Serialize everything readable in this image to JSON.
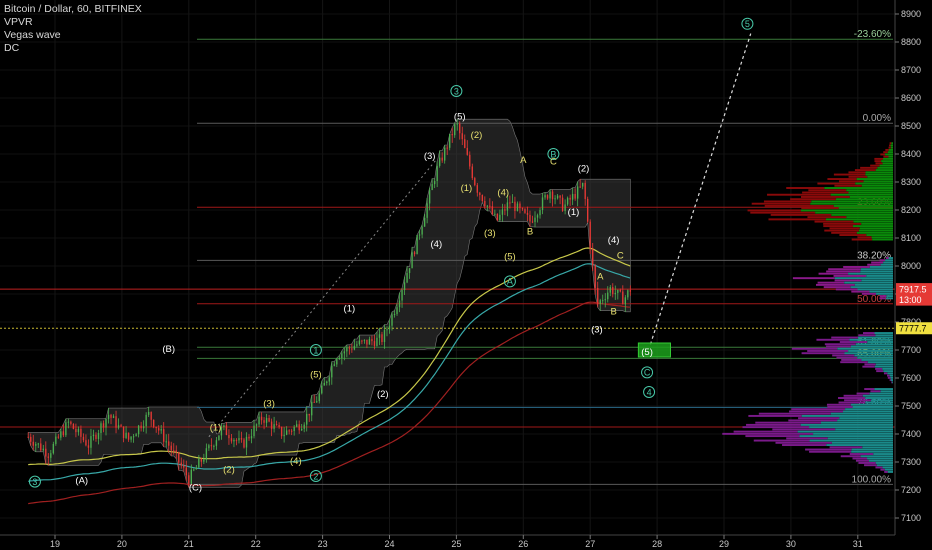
{
  "legend": {
    "title": "Bitcoin / Dollar, 60, BITFINEX",
    "indicators": [
      "VPVR",
      "Vegas wave",
      "DC"
    ]
  },
  "colors": {
    "background": "#000000",
    "candle_up": "#4caf50",
    "candle_down": "#e53935",
    "fib_line": "#3a7a3a",
    "fib_red": "#a01818",
    "ema_yellow": "#c8c84a",
    "ema_cyan": "#38a8a8",
    "ema_red": "#a02020",
    "dc_fill": "#3a3a3a",
    "wave_label": "#ffffff",
    "wave_label_yellow": "#e8e070",
    "circle_label": "#48c8a8"
  },
  "axis": {
    "y_ticks": [
      7100,
      7200,
      7300,
      7400,
      7500,
      7600,
      7700,
      7800,
      7900,
      8000,
      8100,
      8200,
      8300,
      8400,
      8500,
      8600,
      8700,
      8800,
      8900
    ],
    "x_ticks": [
      "19",
      "20",
      "21",
      "22",
      "23",
      "24",
      "25",
      "26",
      "27",
      "28",
      "29",
      "30",
      "31"
    ],
    "x_tick_days": [
      19,
      20,
      21,
      22,
      23,
      24,
      25,
      26,
      27,
      28,
      29,
      30,
      31
    ],
    "ylim": [
      7050,
      8950
    ],
    "xlim": [
      18.6,
      31.4
    ]
  },
  "price_badges": [
    {
      "text": "7917.5",
      "price": 7917.5,
      "bg": "#e53935",
      "fg": "#ffffff"
    },
    {
      "text": "13:00",
      "price": 7880,
      "bg": "#e53935",
      "fg": "#ffffff"
    },
    {
      "text": "7777.7",
      "price": 7777.7,
      "bg": "#f0e040",
      "fg": "#000000"
    }
  ],
  "chart_data": {
    "type": "candlestick",
    "symbol": "Bitcoin / Dollar",
    "interval": "60",
    "exchange": "BITFINEX",
    "price_path": [
      {
        "day": 18.6,
        "price": 7390
      },
      {
        "day": 18.9,
        "price": 7330
      },
      {
        "day": 19.2,
        "price": 7440
      },
      {
        "day": 19.5,
        "price": 7360
      },
      {
        "day": 19.8,
        "price": 7470
      },
      {
        "day": 20.1,
        "price": 7380
      },
      {
        "day": 20.4,
        "price": 7470
      },
      {
        "day": 20.7,
        "price": 7360
      },
      {
        "day": 21.0,
        "price": 7240
      },
      {
        "day": 21.2,
        "price": 7310
      },
      {
        "day": 21.5,
        "price": 7420
      },
      {
        "day": 21.8,
        "price": 7360
      },
      {
        "day": 22.1,
        "price": 7460
      },
      {
        "day": 22.4,
        "price": 7400
      },
      {
        "day": 22.7,
        "price": 7440
      },
      {
        "day": 23.0,
        "price": 7560
      },
      {
        "day": 23.2,
        "price": 7680
      },
      {
        "day": 23.5,
        "price": 7720
      },
      {
        "day": 23.9,
        "price": 7740
      },
      {
        "day": 24.1,
        "price": 7860
      },
      {
        "day": 24.4,
        "price": 8080
      },
      {
        "day": 24.7,
        "price": 8340
      },
      {
        "day": 25.0,
        "price": 8510
      },
      {
        "day": 25.3,
        "price": 8280
      },
      {
        "day": 25.6,
        "price": 8160
      },
      {
        "day": 25.8,
        "price": 8230
      },
      {
        "day": 26.1,
        "price": 8160
      },
      {
        "day": 26.4,
        "price": 8270
      },
      {
        "day": 26.6,
        "price": 8210
      },
      {
        "day": 26.9,
        "price": 8290
      },
      {
        "day": 27.1,
        "price": 7860
      },
      {
        "day": 27.3,
        "price": 7920
      },
      {
        "day": 27.5,
        "price": 7880
      },
      {
        "day": 27.6,
        "price": 7917
      }
    ],
    "fib_levels": [
      {
        "label": "-23.60%",
        "price": 8810
      },
      {
        "label": "0.00%",
        "price": 8510
      },
      {
        "label": "23.60%",
        "price": 8210
      },
      {
        "label": "38.20%",
        "price": 8020
      },
      {
        "label": "50.00%",
        "price": 7865
      },
      {
        "label": "61.80%",
        "price": 7710
      },
      {
        "label": "65.00%",
        "price": 7670
      },
      {
        "label": "78.60%",
        "price": 7495
      },
      {
        "label": "100.00%",
        "price": 7220
      }
    ],
    "wave_labels": [
      {
        "text": "3",
        "day": 18.7,
        "price": 7230,
        "style": "circle"
      },
      {
        "text": "(A)",
        "day": 19.4,
        "price": 7235,
        "style": "plain"
      },
      {
        "text": "(B)",
        "day": 20.7,
        "price": 7705,
        "style": "plain"
      },
      {
        "text": "(C)",
        "day": 21.1,
        "price": 7210,
        "style": "plain"
      },
      {
        "text": "(1)",
        "day": 21.4,
        "price": 7425,
        "style": "yellow"
      },
      {
        "text": "(2)",
        "day": 21.6,
        "price": 7275,
        "style": "yellow"
      },
      {
        "text": "(3)",
        "day": 22.2,
        "price": 7510,
        "style": "yellow"
      },
      {
        "text": "(4)",
        "day": 22.6,
        "price": 7305,
        "style": "yellow"
      },
      {
        "text": "2",
        "day": 22.9,
        "price": 7250,
        "style": "circle"
      },
      {
        "text": "(5)",
        "day": 22.9,
        "price": 7615,
        "style": "yellow"
      },
      {
        "text": "1",
        "day": 22.9,
        "price": 7700,
        "style": "circle"
      },
      {
        "text": "(1)",
        "day": 23.4,
        "price": 7850,
        "style": "plain"
      },
      {
        "text": "(2)",
        "day": 23.9,
        "price": 7545,
        "style": "plain"
      },
      {
        "text": "(3)",
        "day": 24.6,
        "price": 8395,
        "style": "plain"
      },
      {
        "text": "(4)",
        "day": 24.7,
        "price": 8080,
        "style": "plain"
      },
      {
        "text": "3",
        "day": 25.0,
        "price": 8625,
        "style": "circle"
      },
      {
        "text": "(5)",
        "day": 25.05,
        "price": 8535,
        "style": "plain"
      },
      {
        "text": "(2)",
        "day": 25.3,
        "price": 8470,
        "style": "yellow"
      },
      {
        "text": "(1)",
        "day": 25.15,
        "price": 8280,
        "style": "yellow"
      },
      {
        "text": "(3)",
        "day": 25.5,
        "price": 8120,
        "style": "yellow"
      },
      {
        "text": "(4)",
        "day": 25.7,
        "price": 8265,
        "style": "yellow"
      },
      {
        "text": "(5)",
        "day": 25.8,
        "price": 8035,
        "style": "yellow"
      },
      {
        "text": "A",
        "day": 25.8,
        "price": 7945,
        "style": "circle"
      },
      {
        "text": "A",
        "day": 26.0,
        "price": 8380,
        "style": "yellow"
      },
      {
        "text": "B",
        "day": 26.1,
        "price": 8125,
        "style": "yellow"
      },
      {
        "text": "B",
        "day": 26.45,
        "price": 8400,
        "style": "circle"
      },
      {
        "text": "C",
        "day": 26.45,
        "price": 8375,
        "style": "yellow"
      },
      {
        "text": "(2)",
        "day": 26.9,
        "price": 8350,
        "style": "plain"
      },
      {
        "text": "(1)",
        "day": 26.75,
        "price": 8195,
        "style": "plain"
      },
      {
        "text": "(4)",
        "day": 27.35,
        "price": 8095,
        "style": "plain"
      },
      {
        "text": "C",
        "day": 27.45,
        "price": 8040,
        "style": "yellow"
      },
      {
        "text": "A",
        "day": 27.15,
        "price": 7965,
        "style": "yellow"
      },
      {
        "text": "B",
        "day": 27.35,
        "price": 7840,
        "style": "yellow"
      },
      {
        "text": "(3)",
        "day": 27.1,
        "price": 7775,
        "style": "plain"
      },
      {
        "text": "(5)",
        "day": 27.85,
        "price": 7695,
        "style": "plain"
      },
      {
        "text": "C",
        "day": 27.85,
        "price": 7620,
        "style": "circle"
      },
      {
        "text": "4",
        "day": 27.88,
        "price": 7550,
        "style": "circle"
      },
      {
        "text": "5",
        "day": 29.35,
        "price": 8865,
        "style": "circle"
      }
    ]
  }
}
